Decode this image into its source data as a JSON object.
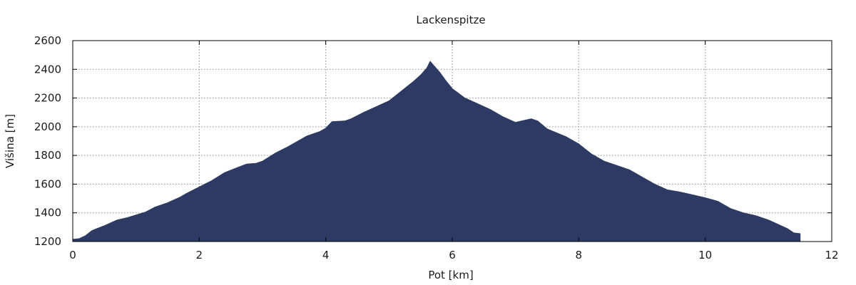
{
  "chart_data": {
    "type": "area",
    "title": "Lackenspitze",
    "xlabel": "Pot [km]",
    "ylabel": "Višina [m]",
    "xlim": [
      0,
      12
    ],
    "ylim": [
      1200,
      2600
    ],
    "x_ticks": [
      0,
      2,
      4,
      6,
      8,
      10,
      12
    ],
    "y_ticks": [
      1200,
      1400,
      1600,
      1800,
      2000,
      2200,
      2400,
      2600
    ],
    "x_tick_labels": [
      "0",
      "2",
      "4",
      "6",
      "8",
      "10",
      "12"
    ],
    "y_tick_labels": [
      "1200",
      "1400",
      "1600",
      "1800",
      "2000",
      "2200",
      "2400",
      "2600"
    ],
    "grid": true,
    "fill_color": "#2c3a64",
    "series": [
      {
        "x": [
          0,
          0.1,
          0.2,
          0.3,
          0.35,
          0.5,
          0.6,
          0.7,
          0.85,
          1.0,
          1.15,
          1.3,
          1.5,
          1.7,
          1.8,
          2.0,
          2.2,
          2.4,
          2.6,
          2.75,
          2.9,
          3.0,
          3.2,
          3.4,
          3.6,
          3.7,
          3.9,
          4.0,
          4.1,
          4.3,
          4.4,
          4.6,
          4.8,
          5.0,
          5.2,
          5.4,
          5.5,
          5.6,
          5.65,
          5.7,
          5.8,
          5.9,
          6.0,
          6.2,
          6.4,
          6.6,
          6.8,
          7.0,
          7.1,
          7.25,
          7.35,
          7.5,
          7.8,
          8.0,
          8.2,
          8.4,
          8.6,
          8.8,
          9.0,
          9.2,
          9.4,
          9.6,
          9.8,
          10.0,
          10.2,
          10.4,
          10.6,
          10.8,
          11.0,
          11.1,
          11.3,
          11.4,
          11.5
        ],
        "y": [
          1215,
          1220,
          1240,
          1275,
          1285,
          1310,
          1330,
          1350,
          1365,
          1385,
          1405,
          1440,
          1470,
          1510,
          1535,
          1580,
          1625,
          1680,
          1715,
          1740,
          1745,
          1760,
          1815,
          1860,
          1910,
          1935,
          1965,
          1990,
          2035,
          2040,
          2055,
          2100,
          2140,
          2180,
          2250,
          2320,
          2360,
          2410,
          2455,
          2430,
          2380,
          2320,
          2265,
          2200,
          2160,
          2120,
          2070,
          2030,
          2040,
          2055,
          2040,
          1985,
          1930,
          1880,
          1810,
          1760,
          1730,
          1700,
          1650,
          1600,
          1560,
          1545,
          1525,
          1505,
          1480,
          1430,
          1400,
          1380,
          1350,
          1330,
          1290,
          1260,
          1255
        ]
      }
    ]
  }
}
